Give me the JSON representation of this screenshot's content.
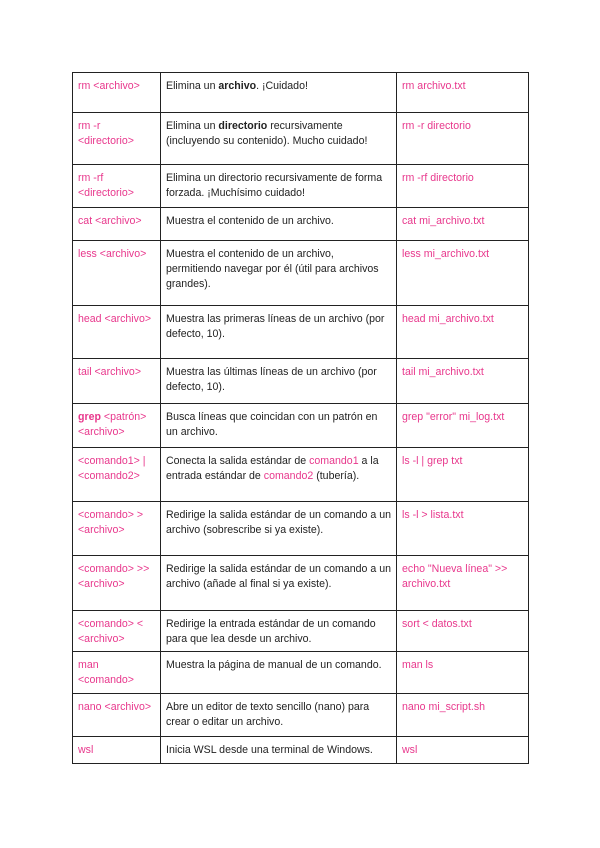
{
  "accent_color": "#e8378c",
  "rows": [
    {
      "cmd": [
        {
          "t": "rm <archivo>",
          "s": "pink"
        }
      ],
      "desc": [
        {
          "t": "Elimina un "
        },
        {
          "t": "archivo",
          "s": "bold"
        },
        {
          "t": ". ¡Cuidado!"
        }
      ],
      "ex": [
        {
          "t": "rm archivo.txt",
          "s": "pink"
        }
      ]
    },
    {
      "cmd": [
        {
          "t": "rm -r <directorio>",
          "s": "pink"
        }
      ],
      "desc": [
        {
          "t": "Elimina un "
        },
        {
          "t": "directorio",
          "s": "bold"
        },
        {
          "t": " recursivamente (incluyendo su contenido). Mucho cuidado!"
        }
      ],
      "ex": [
        {
          "t": "rm -r directorio",
          "s": "pink"
        }
      ]
    },
    {
      "cmd": [
        {
          "t": "rm -rf <directorio>",
          "s": "pink"
        }
      ],
      "desc": [
        {
          "t": "Elimina un directorio recursivamente de forma forzada. ¡Muchísimo cuidado!"
        }
      ],
      "ex": [
        {
          "t": "rm -rf directorio",
          "s": "pink"
        }
      ]
    },
    {
      "cmd": [
        {
          "t": "cat <archivo>",
          "s": "pink"
        }
      ],
      "desc": [
        {
          "t": "Muestra el contenido de un archivo."
        }
      ],
      "ex": [
        {
          "t": "cat mi_archivo.txt",
          "s": "pink"
        }
      ]
    },
    {
      "cmd": [
        {
          "t": "less <archivo>",
          "s": "pink"
        }
      ],
      "desc": [
        {
          "t": "Muestra el contenido de un archivo, permitiendo navegar por él (útil para archivos grandes)."
        }
      ],
      "ex": [
        {
          "t": "less mi_archivo.txt",
          "s": "pink"
        }
      ]
    },
    {
      "cmd": [
        {
          "t": "head <archivo>",
          "s": "pink"
        }
      ],
      "desc": [
        {
          "t": "Muestra las primeras líneas de un archivo (por defecto, 10)."
        }
      ],
      "ex": [
        {
          "t": "head mi_archivo.txt",
          "s": "pink"
        }
      ]
    },
    {
      "cmd": [
        {
          "t": "tail <archivo>",
          "s": "pink"
        }
      ],
      "desc": [
        {
          "t": "Muestra las últimas líneas de un archivo (por defecto, 10)."
        }
      ],
      "ex": [
        {
          "t": "tail mi_archivo.txt",
          "s": "pink"
        }
      ]
    },
    {
      "cmd": [
        {
          "t": "grep",
          "s": "pink bold"
        },
        {
          "t": " <patrón> <archivo>",
          "s": "pink"
        }
      ],
      "desc": [
        {
          "t": "Busca líneas que coincidan con un patrón en un archivo."
        }
      ],
      "ex": [
        {
          "t": "grep \"error\" mi_log.txt",
          "s": "pink"
        }
      ]
    },
    {
      "cmd": [
        {
          "t": "<comando1> | <comando2>",
          "s": "pink"
        }
      ],
      "desc": [
        {
          "t": "Conecta la salida estándar de "
        },
        {
          "t": "comando1",
          "s": "pink"
        },
        {
          "t": " a la entrada estándar de "
        },
        {
          "t": "comando2",
          "s": "pink"
        },
        {
          "t": " (tubería)."
        }
      ],
      "ex": [
        {
          "t": "ls -l | grep txt",
          "s": "pink"
        }
      ]
    },
    {
      "cmd": [
        {
          "t": "<comando> > <archivo>",
          "s": "pink"
        }
      ],
      "desc": [
        {
          "t": "Redirige la salida estándar de un comando a un archivo (sobrescribe si ya existe)."
        }
      ],
      "ex": [
        {
          "t": "ls -l > lista.txt",
          "s": "pink"
        }
      ]
    },
    {
      "cmd": [
        {
          "t": "<comando> >> <archivo>",
          "s": "pink"
        }
      ],
      "desc": [
        {
          "t": "Redirige la salida estándar de un comando a un archivo (añade al final si ya existe)."
        }
      ],
      "ex": [
        {
          "t": "echo \"Nueva línea\" >> archivo.txt",
          "s": "pink"
        }
      ]
    },
    {
      "cmd": [
        {
          "t": "<comando> < <archivo>",
          "s": "pink"
        }
      ],
      "desc": [
        {
          "t": "Redirige la entrada estándar de un comando para que lea desde un archivo."
        }
      ],
      "ex": [
        {
          "t": "sort < datos.txt",
          "s": "pink"
        }
      ]
    },
    {
      "cmd": [
        {
          "t": "man <comando>",
          "s": "pink"
        }
      ],
      "desc": [
        {
          "t": "Muestra la página de manual de un comando."
        }
      ],
      "ex": [
        {
          "t": "man ls",
          "s": "pink"
        }
      ]
    },
    {
      "cmd": [
        {
          "t": "nano <archivo>",
          "s": "pink"
        }
      ],
      "desc": [
        {
          "t": "Abre un editor de texto sencillo (nano) para crear o editar un archivo."
        }
      ],
      "ex": [
        {
          "t": "nano mi_script.sh",
          "s": "pink"
        }
      ]
    },
    {
      "cmd": [
        {
          "t": "wsl",
          "s": "pink"
        }
      ],
      "desc": [
        {
          "t": "Inicia WSL desde una terminal de Windows."
        }
      ],
      "ex": [
        {
          "t": "wsl",
          "s": "pink"
        }
      ]
    }
  ]
}
